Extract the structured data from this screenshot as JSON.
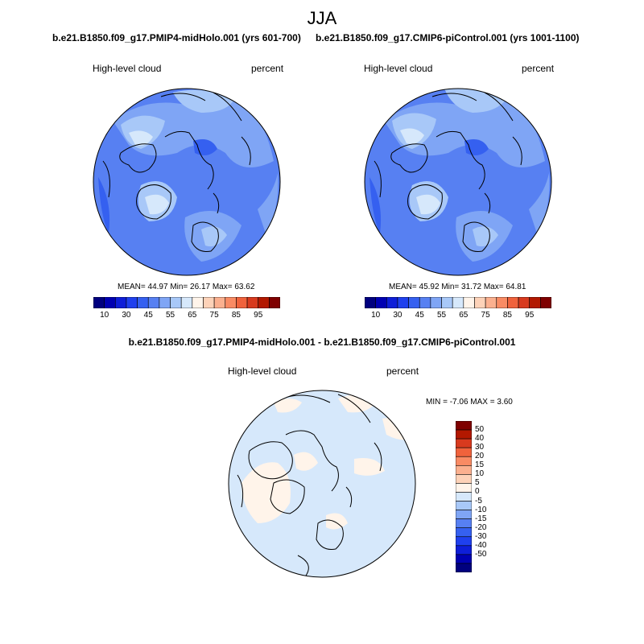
{
  "title": "JJA",
  "panel_left": {
    "case": "b.e21.B1850.f09_g17.PMIP4-midHolo.001 (yrs 601-700)",
    "variable": "High-level cloud",
    "units": "percent",
    "stats": "MEAN=  44.97  Min=  26.17  Max=  63.62"
  },
  "panel_right": {
    "case": "b.e21.B1850.f09_g17.CMIP6-piControl.001 (yrs 1001-1100)",
    "variable": "High-level cloud",
    "units": "percent",
    "stats": "MEAN=  45.92  Min=  31.72  Max=  64.81"
  },
  "panel_diff": {
    "case": "b.e21.B1850.f09_g17.PMIP4-midHolo.001 - b.e21.B1850.f09_g17.CMIP6-piControl.001",
    "variable": "High-level cloud",
    "units": "percent",
    "stats": "MIN =  -7.06 MAX =   3.60"
  },
  "colorbar_top": {
    "colors": [
      "#00007f",
      "#0000b2",
      "#0e1ed8",
      "#1f40ee",
      "#3560f0",
      "#5780f2",
      "#7fa5f5",
      "#a8c8f8",
      "#d6e8fb",
      "#fff4ea",
      "#fdd2b8",
      "#fbb08f",
      "#f98b64",
      "#f0623c",
      "#d83a1e",
      "#b21800",
      "#7f0000"
    ],
    "labels": [
      "10",
      "30",
      "45",
      "55",
      "65",
      "75",
      "85",
      "95"
    ]
  },
  "colorbar_diff": {
    "colors": [
      "#7f0000",
      "#b21800",
      "#d83a1e",
      "#f0623c",
      "#f98b64",
      "#fbb08f",
      "#fdd2b8",
      "#fff4ea",
      "#d6e8fb",
      "#a8c8f8",
      "#7fa5f5",
      "#5780f2",
      "#3560f0",
      "#1f40ee",
      "#0e1ed8",
      "#0000b2",
      "#00007f"
    ],
    "labels": [
      "50",
      "40",
      "30",
      "20",
      "15",
      "10",
      "5",
      "0",
      "-5",
      "-10",
      "-15",
      "-20",
      "-30",
      "-40",
      "-50"
    ]
  }
}
